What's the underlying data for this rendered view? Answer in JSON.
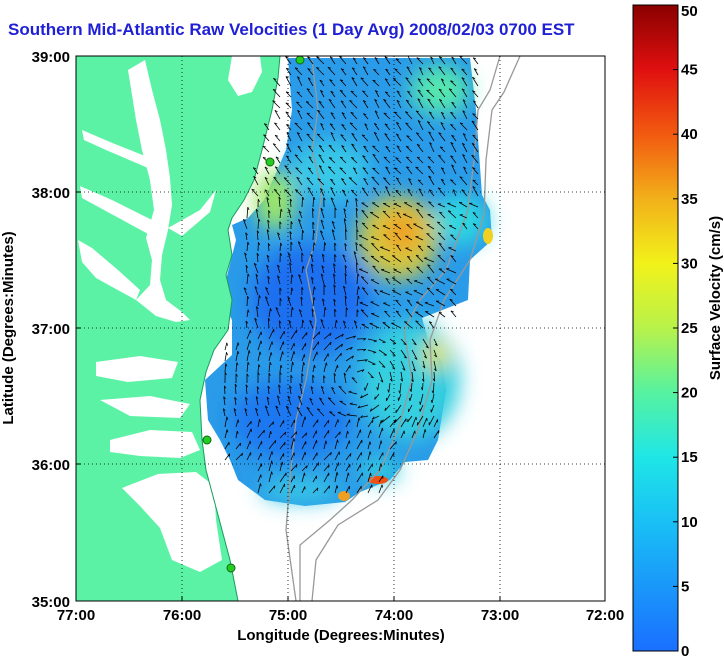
{
  "title": "Southern Mid-Atlantic Raw Velocities (1 Day Avg) 2008/02/03 0700 EST",
  "axes": {
    "xlabel": "Longitude (Degrees:Minutes)",
    "ylabel": "Latitude (Degrees:Minutes)",
    "x_ticks": [
      "77:00",
      "76:00",
      "75:00",
      "74:00",
      "73:00",
      "72:00"
    ],
    "y_ticks": [
      "39:00",
      "38:00",
      "37:00",
      "36:00",
      "35:00"
    ]
  },
  "colorbar": {
    "label": "Surface Velocity (cm/s)",
    "ticks": [
      "0",
      "5",
      "10",
      "15",
      "20",
      "25",
      "30",
      "35",
      "40",
      "45",
      "50"
    ],
    "range": [
      0,
      50
    ]
  },
  "map": {
    "lon_range": [
      -77,
      -72
    ],
    "lat_range": [
      35,
      39
    ],
    "grid": true,
    "land_color": "#5cf2a6",
    "ocean_color": "#ffffff",
    "bathymetry_color": "#999999",
    "vector_color": "#000000",
    "station_color": "#22cc22"
  }
}
